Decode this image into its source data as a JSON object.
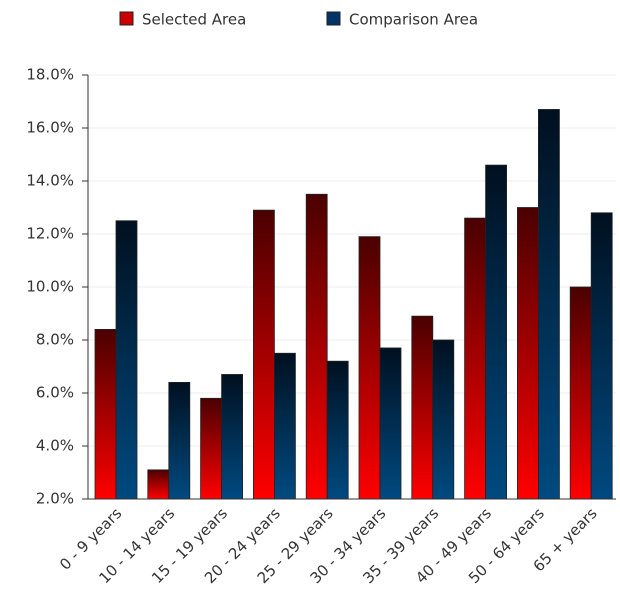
{
  "chart_data": {
    "type": "bar",
    "categories": [
      "0 - 9 years",
      "10 - 14 years",
      "15 - 19 years",
      "20 - 24 years",
      "25 - 29 years",
      "30 - 34 years",
      "35 - 39 years",
      "40 - 49 years",
      "50 - 64 years",
      "65 + years"
    ],
    "series": [
      {
        "name": "Selected Area",
        "color": "#cc0000",
        "values": [
          8.4,
          3.1,
          5.8,
          12.9,
          13.5,
          11.9,
          8.9,
          12.6,
          13.0,
          10.0
        ]
      },
      {
        "name": "Comparison Area",
        "color": "#003366",
        "values": [
          12.5,
          6.4,
          6.7,
          7.5,
          7.2,
          7.7,
          8.0,
          14.6,
          16.7,
          12.8
        ]
      }
    ],
    "ylim": [
      2,
      18
    ],
    "yticks": [
      {
        "value": 2,
        "label": "2.0%"
      },
      {
        "value": 4,
        "label": "4.0%"
      },
      {
        "value": 6,
        "label": "6.0%"
      },
      {
        "value": 8,
        "label": "8.0%"
      },
      {
        "value": 10,
        "label": "10.0%"
      },
      {
        "value": 12,
        "label": "12.0%"
      },
      {
        "value": 14,
        "label": "14.0%"
      },
      {
        "value": 16,
        "label": "16.0%"
      },
      {
        "value": 18,
        "label": "18.0%"
      }
    ],
    "grid": true,
    "legend": "top"
  }
}
